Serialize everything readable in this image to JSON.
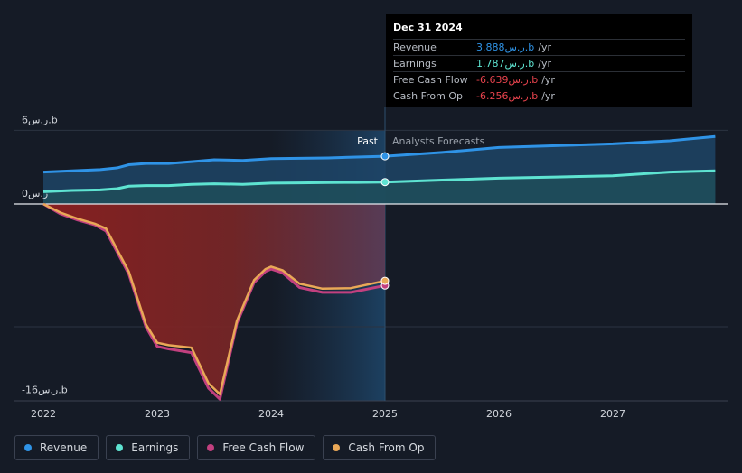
{
  "chart_data": {
    "type": "line",
    "title": "",
    "y_unit_suffix": "ر.س.b",
    "y_ticks": [
      {
        "value": 6,
        "label": "6ر.س.b"
      },
      {
        "value": 0,
        "label": "0ر.س"
      },
      {
        "value": -16,
        "label": "-16ر.س.b"
      }
    ],
    "ylim": [
      -16,
      6
    ],
    "xlim": [
      2022,
      2027.9
    ],
    "x_ticks": [
      "2022",
      "2023",
      "2024",
      "2025",
      "2026",
      "2027"
    ],
    "divider_x": 2025.0,
    "past_label": "Past",
    "forecast_label": "Analysts Forecasts",
    "series": [
      {
        "name": "Revenue",
        "color": "#2f93e6",
        "x": [
          2022.0,
          2022.25,
          2022.5,
          2022.65,
          2022.75,
          2022.9,
          2023.1,
          2023.3,
          2023.5,
          2023.75,
          2024.0,
          2024.25,
          2024.5,
          2024.75,
          2025.0
        ],
        "values": [
          2.6,
          2.7,
          2.8,
          2.95,
          3.2,
          3.3,
          3.3,
          3.45,
          3.6,
          3.55,
          3.7,
          3.72,
          3.75,
          3.82,
          3.888
        ],
        "forecast_x": [
          2025.0,
          2025.5,
          2026.0,
          2026.5,
          2027.0,
          2027.5,
          2027.9
        ],
        "forecast_values": [
          3.888,
          4.2,
          4.6,
          4.75,
          4.9,
          5.15,
          5.5
        ]
      },
      {
        "name": "Earnings",
        "color": "#5ee3d1",
        "x": [
          2022.0,
          2022.25,
          2022.5,
          2022.65,
          2022.75,
          2022.9,
          2023.1,
          2023.3,
          2023.5,
          2023.75,
          2024.0,
          2024.25,
          2024.5,
          2024.75,
          2025.0
        ],
        "values": [
          1.0,
          1.1,
          1.15,
          1.25,
          1.45,
          1.5,
          1.5,
          1.6,
          1.65,
          1.6,
          1.7,
          1.72,
          1.74,
          1.76,
          1.787
        ],
        "forecast_x": [
          2025.0,
          2025.5,
          2026.0,
          2026.5,
          2027.0,
          2027.5,
          2027.9
        ],
        "forecast_values": [
          1.787,
          1.95,
          2.1,
          2.2,
          2.3,
          2.6,
          2.7
        ]
      },
      {
        "name": "Free Cash Flow",
        "color": "#c2407f",
        "x": [
          2022.0,
          2022.15,
          2022.3,
          2022.45,
          2022.55,
          2022.75,
          2022.9,
          2023.0,
          2023.1,
          2023.3,
          2023.45,
          2023.55,
          2023.7,
          2023.85,
          2023.95,
          2024.0,
          2024.1,
          2024.25,
          2024.45,
          2024.7,
          2025.0
        ],
        "values": [
          0.0,
          -0.8,
          -1.3,
          -1.7,
          -2.2,
          -5.7,
          -10.0,
          -11.6,
          -11.8,
          -12.1,
          -15.0,
          -15.9,
          -9.7,
          -6.4,
          -5.5,
          -5.3,
          -5.6,
          -6.8,
          -7.2,
          -7.2,
          -6.639
        ]
      },
      {
        "name": "Cash From Op",
        "color": "#e9a857",
        "x": [
          2022.0,
          2022.15,
          2022.3,
          2022.45,
          2022.55,
          2022.75,
          2022.9,
          2023.0,
          2023.1,
          2023.3,
          2023.45,
          2023.55,
          2023.7,
          2023.85,
          2023.95,
          2024.0,
          2024.1,
          2024.25,
          2024.45,
          2024.7,
          2025.0
        ],
        "values": [
          0.0,
          -0.7,
          -1.2,
          -1.6,
          -2.0,
          -5.5,
          -9.8,
          -11.3,
          -11.5,
          -11.7,
          -14.6,
          -15.5,
          -9.5,
          -6.2,
          -5.3,
          -5.1,
          -5.4,
          -6.5,
          -6.9,
          -6.85,
          -6.256
        ]
      }
    ]
  },
  "tooltip": {
    "date": "Dec 31 2024",
    "rows": [
      {
        "label": "Revenue",
        "value": "3.888ر.س.b",
        "unit": "/yr",
        "color": "#2f93e6"
      },
      {
        "label": "Earnings",
        "value": "1.787ر.س.b",
        "unit": "/yr",
        "color": "#5ee3d1"
      },
      {
        "label": "Free Cash Flow",
        "value": "-6.639ر.س.b",
        "unit": "/yr",
        "color": "#e8434d"
      },
      {
        "label": "Cash From Op",
        "value": "-6.256ر.س.b",
        "unit": "/yr",
        "color": "#e8434d"
      }
    ]
  },
  "legend": [
    {
      "label": "Revenue",
      "color": "#2f93e6"
    },
    {
      "label": "Earnings",
      "color": "#5ee3d1"
    },
    {
      "label": "Free Cash Flow",
      "color": "#c2407f"
    },
    {
      "label": "Cash From Op",
      "color": "#e9a857"
    }
  ]
}
